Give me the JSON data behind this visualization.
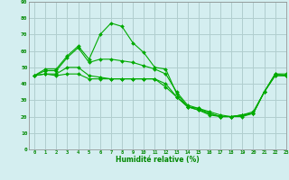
{
  "xlabel": "Humidité relative (%)",
  "background_color": "#d4eef0",
  "grid_color": "#b0cece",
  "line_color": "#00aa00",
  "xlim": [
    -0.5,
    23
  ],
  "ylim": [
    0,
    90
  ],
  "xticks": [
    0,
    1,
    2,
    3,
    4,
    5,
    6,
    7,
    8,
    9,
    10,
    11,
    12,
    13,
    14,
    15,
    16,
    17,
    18,
    19,
    20,
    21,
    22,
    23
  ],
  "yticks": [
    0,
    10,
    20,
    30,
    40,
    50,
    60,
    70,
    80,
    90
  ],
  "series": [
    [
      45,
      49,
      49,
      57,
      63,
      55,
      70,
      77,
      75,
      65,
      59,
      50,
      49,
      34,
      26,
      25,
      22,
      20,
      20,
      21,
      23,
      35,
      46,
      46
    ],
    [
      45,
      48,
      48,
      56,
      62,
      53,
      55,
      55,
      54,
      53,
      51,
      49,
      46,
      35,
      27,
      25,
      23,
      21,
      20,
      21,
      22,
      35,
      46,
      45
    ],
    [
      45,
      46,
      46,
      50,
      50,
      45,
      44,
      43,
      43,
      43,
      43,
      43,
      40,
      32,
      26,
      24,
      21,
      20,
      20,
      20,
      22,
      35,
      45,
      45
    ],
    [
      45,
      46,
      45,
      46,
      46,
      43,
      43,
      43,
      43,
      43,
      43,
      43,
      38,
      32,
      26,
      24,
      22,
      20,
      20,
      21,
      22,
      35,
      45,
      45
    ]
  ]
}
